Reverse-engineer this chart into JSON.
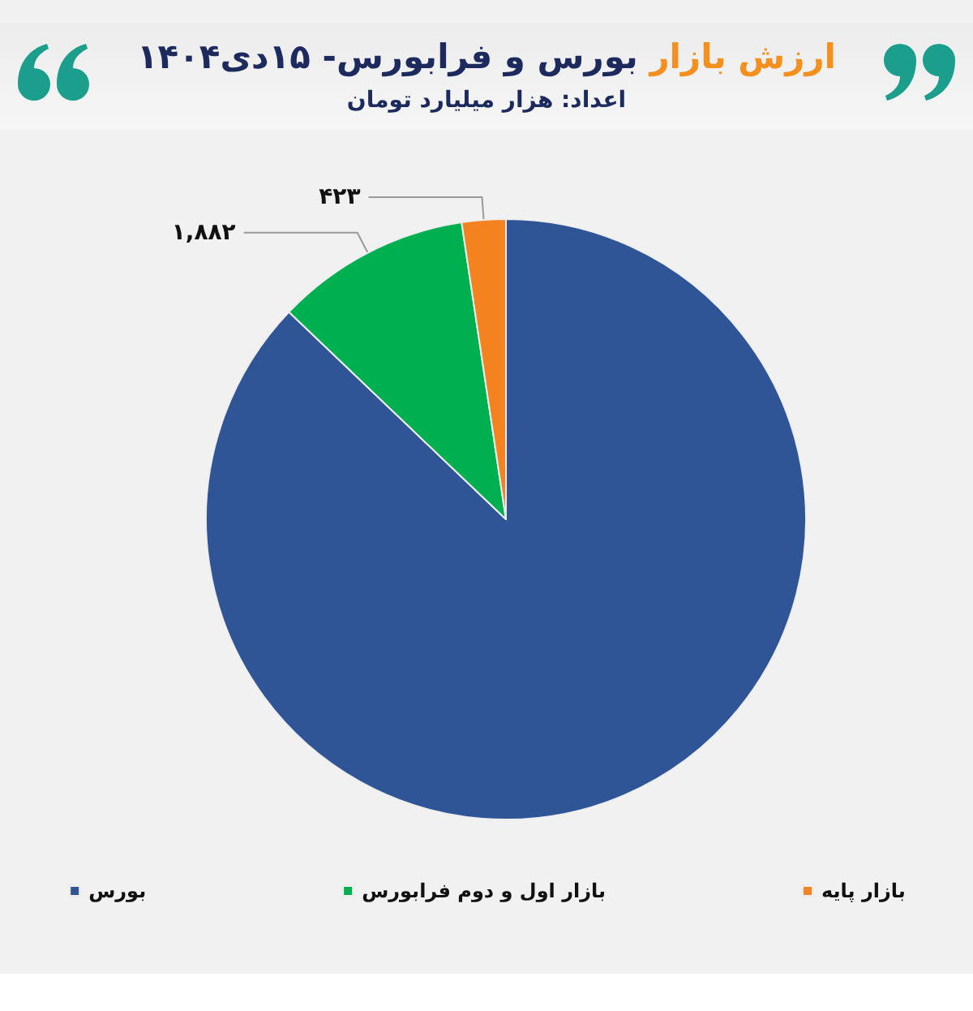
{
  "chart_data": {
    "type": "pie",
    "title": "ارزش بازار بورس و فرابورس- ۱۵دی۱۴۰۴",
    "subtitle": "اعداد: هزار میلیارد تومان",
    "categories": [
      "بورس",
      "بازار اول و دوم فرابورس",
      "بازار پایه"
    ],
    "values": [
      15600,
      1882,
      423
    ],
    "colors": [
      "#2f5597",
      "#00b050",
      "#f4821f"
    ],
    "value_labels": [
      null,
      "۱,۸۸۲",
      "۴۲۳"
    ],
    "legend": "bottom"
  }
}
